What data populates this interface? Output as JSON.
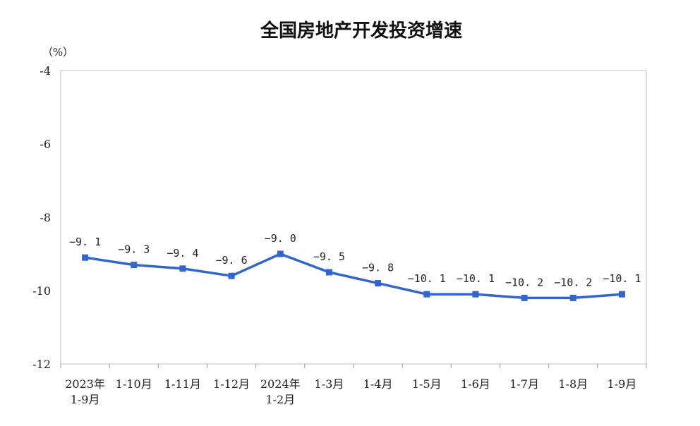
{
  "chart_data": {
    "type": "line",
    "title": "全国房地产开发投资增速",
    "ylabel": "（%）",
    "xlabel": "",
    "ylim": [
      -12,
      -4
    ],
    "yticks": [
      -4,
      -6,
      -8,
      -10,
      -12
    ],
    "grid": false,
    "categories": [
      [
        "2023年",
        "1-9月"
      ],
      [
        "1-10月"
      ],
      [
        "1-11月"
      ],
      [
        "1-12月"
      ],
      [
        "2024年",
        "1-2月"
      ],
      [
        "1-3月"
      ],
      [
        "1-4月"
      ],
      [
        "1-5月"
      ],
      [
        "1-6月"
      ],
      [
        "1-7月"
      ],
      [
        "1-8月"
      ],
      [
        "1-9月"
      ]
    ],
    "series": [
      {
        "values": [
          -9.1,
          -9.3,
          -9.4,
          -9.6,
          -9.0,
          -9.5,
          -9.8,
          -10.1,
          -10.1,
          -10.2,
          -10.2,
          -10.1
        ],
        "labels": [
          "−9. 1",
          "−9. 3",
          "−9. 4",
          "−9. 6",
          "−9. 0",
          "−9. 5",
          "−9. 8",
          "−10. 1",
          "−10. 1",
          "−10. 2",
          "−10. 2",
          "−10. 1"
        ],
        "color": "#3366cc",
        "marker": "square"
      }
    ]
  }
}
